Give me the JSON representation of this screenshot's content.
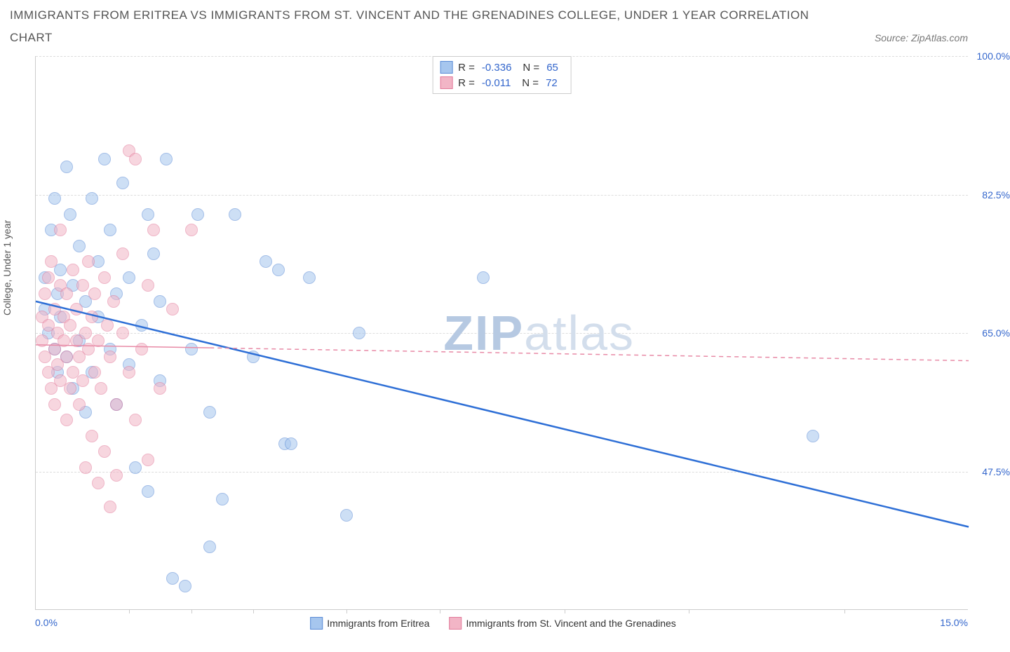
{
  "title_line1": "IMMIGRANTS FROM ERITREA VS IMMIGRANTS FROM ST. VINCENT AND THE GRENADINES COLLEGE, UNDER 1 YEAR CORRELATION",
  "title_line2": "CHART",
  "source_label": "Source: ZipAtlas.com",
  "y_axis_label": "College, Under 1 year",
  "watermark_a": "ZIP",
  "watermark_b": "atlas",
  "chart": {
    "type": "scatter-correlation",
    "background_color": "#ffffff",
    "grid_color": "#dddddd",
    "axis_color": "#cccccc",
    "text_color": "#555555",
    "value_color": "#3366cc",
    "xlim": [
      0.0,
      15.0
    ],
    "ylim": [
      30.0,
      100.0
    ],
    "x_min_label": "0.0%",
    "x_max_label": "15.0%",
    "y_ticks": [
      47.5,
      65.0,
      82.5,
      100.0
    ],
    "y_tick_labels": [
      "47.5%",
      "65.0%",
      "82.5%",
      "100.0%"
    ],
    "x_tick_positions": [
      1.5,
      2.5,
      3.5,
      5.0,
      6.5,
      8.5,
      10.5,
      13.0
    ],
    "marker_radius": 9,
    "marker_opacity": 0.55,
    "series": [
      {
        "name": "Immigrants from Eritrea",
        "fill": "#a6c6ee",
        "stroke": "#5a8bd6",
        "R": "-0.336",
        "N": "65",
        "trend": {
          "x0": 0.0,
          "y0": 69.0,
          "x1": 15.0,
          "y1": 40.5,
          "stroke": "#2e6fd6",
          "width": 2.5,
          "dash": "none"
        },
        "points": [
          [
            0.15,
            68
          ],
          [
            0.15,
            72
          ],
          [
            0.2,
            65
          ],
          [
            0.25,
            78
          ],
          [
            0.3,
            63
          ],
          [
            0.3,
            82
          ],
          [
            0.35,
            70
          ],
          [
            0.35,
            60
          ],
          [
            0.4,
            67
          ],
          [
            0.4,
            73
          ],
          [
            0.5,
            86
          ],
          [
            0.5,
            62
          ],
          [
            0.55,
            80
          ],
          [
            0.6,
            58
          ],
          [
            0.6,
            71
          ],
          [
            0.7,
            76
          ],
          [
            0.7,
            64
          ],
          [
            0.8,
            69
          ],
          [
            0.8,
            55
          ],
          [
            0.9,
            82
          ],
          [
            0.9,
            60
          ],
          [
            1.0,
            67
          ],
          [
            1.0,
            74
          ],
          [
            1.1,
            87
          ],
          [
            1.2,
            63
          ],
          [
            1.2,
            78
          ],
          [
            1.3,
            70
          ],
          [
            1.3,
            56
          ],
          [
            1.4,
            84
          ],
          [
            1.5,
            61
          ],
          [
            1.5,
            72
          ],
          [
            1.6,
            48
          ],
          [
            1.7,
            66
          ],
          [
            1.8,
            80
          ],
          [
            1.8,
            45
          ],
          [
            1.9,
            75
          ],
          [
            2.0,
            59
          ],
          [
            2.0,
            69
          ],
          [
            2.1,
            87
          ],
          [
            2.2,
            34
          ],
          [
            2.4,
            33
          ],
          [
            2.5,
            63
          ],
          [
            2.6,
            80
          ],
          [
            2.8,
            38
          ],
          [
            2.8,
            55
          ],
          [
            3.0,
            44
          ],
          [
            3.2,
            80
          ],
          [
            3.5,
            62
          ],
          [
            3.7,
            74
          ],
          [
            3.9,
            73
          ],
          [
            4.0,
            51
          ],
          [
            4.1,
            51
          ],
          [
            4.4,
            72
          ],
          [
            5.0,
            42
          ],
          [
            5.2,
            65
          ],
          [
            7.2,
            72
          ],
          [
            12.5,
            52
          ]
        ]
      },
      {
        "name": "Immigrants from St. Vincent and the Grenadines",
        "fill": "#f2b5c6",
        "stroke": "#e27a9a",
        "R": "-0.011",
        "N": "72",
        "trend": {
          "x0": 0.0,
          "y0": 63.5,
          "x1": 15.0,
          "y1": 61.5,
          "stroke": "#e88aa6",
          "width": 1.5,
          "dash": "6,5",
          "solid_until": 2.8
        },
        "points": [
          [
            0.1,
            64
          ],
          [
            0.1,
            67
          ],
          [
            0.15,
            62
          ],
          [
            0.15,
            70
          ],
          [
            0.2,
            60
          ],
          [
            0.2,
            66
          ],
          [
            0.2,
            72
          ],
          [
            0.25,
            58
          ],
          [
            0.25,
            74
          ],
          [
            0.3,
            63
          ],
          [
            0.3,
            68
          ],
          [
            0.3,
            56
          ],
          [
            0.35,
            65
          ],
          [
            0.35,
            61
          ],
          [
            0.4,
            71
          ],
          [
            0.4,
            59
          ],
          [
            0.4,
            78
          ],
          [
            0.45,
            64
          ],
          [
            0.45,
            67
          ],
          [
            0.5,
            54
          ],
          [
            0.5,
            70
          ],
          [
            0.5,
            62
          ],
          [
            0.55,
            66
          ],
          [
            0.55,
            58
          ],
          [
            0.6,
            73
          ],
          [
            0.6,
            60
          ],
          [
            0.65,
            64
          ],
          [
            0.65,
            68
          ],
          [
            0.7,
            56
          ],
          [
            0.7,
            62
          ],
          [
            0.75,
            71
          ],
          [
            0.75,
            59
          ],
          [
            0.8,
            65
          ],
          [
            0.8,
            48
          ],
          [
            0.85,
            63
          ],
          [
            0.85,
            74
          ],
          [
            0.9,
            52
          ],
          [
            0.9,
            67
          ],
          [
            0.95,
            60
          ],
          [
            0.95,
            70
          ],
          [
            1.0,
            46
          ],
          [
            1.0,
            64
          ],
          [
            1.05,
            58
          ],
          [
            1.1,
            72
          ],
          [
            1.1,
            50
          ],
          [
            1.15,
            66
          ],
          [
            1.2,
            43
          ],
          [
            1.2,
            62
          ],
          [
            1.25,
            69
          ],
          [
            1.3,
            56
          ],
          [
            1.3,
            47
          ],
          [
            1.4,
            65
          ],
          [
            1.4,
            75
          ],
          [
            1.5,
            60
          ],
          [
            1.5,
            88
          ],
          [
            1.6,
            87
          ],
          [
            1.6,
            54
          ],
          [
            1.7,
            63
          ],
          [
            1.8,
            49
          ],
          [
            1.8,
            71
          ],
          [
            1.9,
            78
          ],
          [
            2.0,
            58
          ],
          [
            2.2,
            68
          ],
          [
            2.5,
            78
          ]
        ]
      }
    ],
    "legend_top": {
      "r_label": "R =",
      "n_label": "N ="
    },
    "legend_bottom": [
      {
        "label": "Immigrants from Eritrea",
        "fill": "#a6c6ee",
        "stroke": "#5a8bd6"
      },
      {
        "label": "Immigrants from St. Vincent and the Grenadines",
        "fill": "#f2b5c6",
        "stroke": "#e27a9a"
      }
    ]
  }
}
